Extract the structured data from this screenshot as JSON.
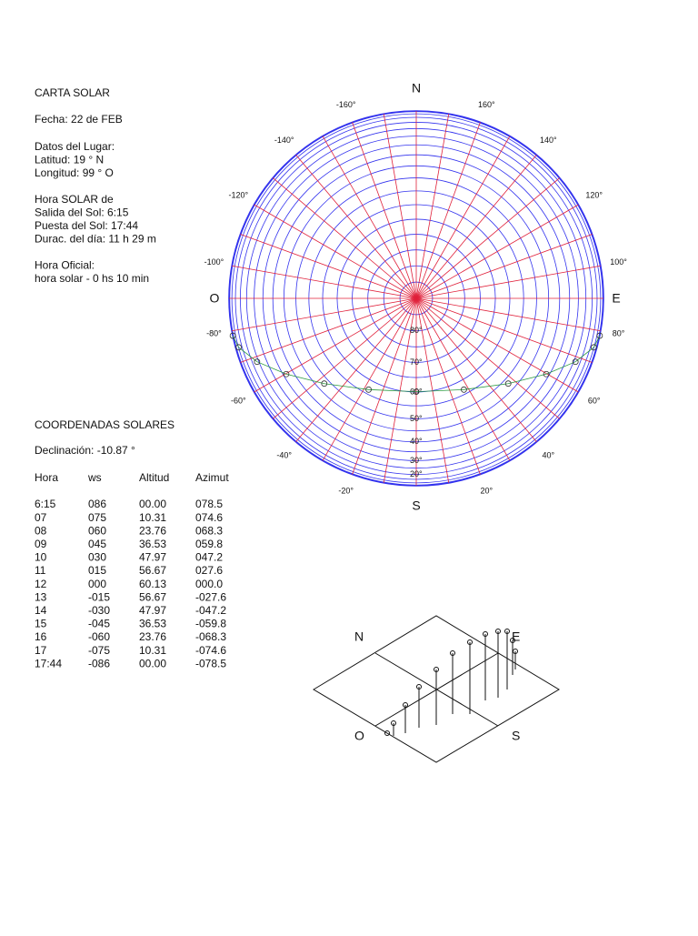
{
  "header": {
    "title": "CARTA SOLAR",
    "fecha": "Fecha:  22 de FEB"
  },
  "lugar": [
    "Datos del Lugar:",
    "Latitud:   19 ° N",
    "Longitud: 99 ° O"
  ],
  "hora_solar": [
    "Hora SOLAR de",
    "Salida del Sol:  6:15",
    "Puesta del Sol:  17:44",
    "Durac. del día:  11 h 29 m"
  ],
  "hora_oficial": [
    "Hora Oficial:",
    "hora solar - 0 hs 10 min"
  ],
  "coordenadas": {
    "title": "COORDENADAS SOLARES",
    "declinacion": "Declinación: -10.87 °",
    "table": {
      "columns": [
        "Hora",
        "ws",
        "Altitud",
        "Azimut"
      ],
      "rows": [
        [
          "6:15",
          "086",
          "00.00",
          "078.5"
        ],
        [
          "07",
          "075",
          "10.31",
          "074.6"
        ],
        [
          "08",
          "060",
          "23.76",
          "068.3"
        ],
        [
          "09",
          "045",
          "36.53",
          "059.8"
        ],
        [
          "10",
          "030",
          "47.97",
          "047.2"
        ],
        [
          "11",
          "015",
          "56.67",
          "027.6"
        ],
        [
          "12",
          "000",
          "60.13",
          "000.0"
        ],
        [
          "13",
          "-015",
          "56.67",
          "-027.6"
        ],
        [
          "14",
          "-030",
          "47.97",
          "-047.2"
        ],
        [
          "15",
          "-045",
          "36.53",
          "-059.8"
        ],
        [
          "16",
          "-060",
          "23.76",
          "-068.3"
        ],
        [
          "17",
          "-075",
          "10.31",
          "-074.6"
        ],
        [
          "17:44",
          "-086",
          "00.00",
          "-078.5"
        ]
      ]
    }
  },
  "carta": {
    "cardinals": {
      "N": "N",
      "S": "S",
      "E": "E",
      "O": "O"
    },
    "azimuth_labels": [
      {
        "value": 20,
        "label": "20°"
      },
      {
        "value": 40,
        "label": "40°"
      },
      {
        "value": 60,
        "label": "60°"
      },
      {
        "value": 80,
        "label": "80°"
      },
      {
        "value": 100,
        "label": "100°"
      },
      {
        "value": 120,
        "label": "120°"
      },
      {
        "value": 140,
        "label": "140°"
      },
      {
        "value": 160,
        "label": "160°"
      },
      {
        "value": -20,
        "label": "-20°"
      },
      {
        "value": -40,
        "label": "-40°"
      },
      {
        "value": -60,
        "label": "-60°"
      },
      {
        "value": -80,
        "label": "-80°"
      },
      {
        "value": -100,
        "label": "-100°"
      },
      {
        "value": -120,
        "label": "-120°"
      },
      {
        "value": -140,
        "label": "-140°"
      },
      {
        "value": -160,
        "label": "-160°"
      }
    ],
    "altitude_labels": [
      {
        "value": 20,
        "label": "20°"
      },
      {
        "value": 30,
        "label": "30°"
      },
      {
        "value": 40,
        "label": "40°"
      },
      {
        "value": 50,
        "label": "50°"
      },
      {
        "value": 60,
        "label": "60°"
      },
      {
        "value": 70,
        "label": "70°"
      },
      {
        "value": 80,
        "label": "80°"
      }
    ]
  },
  "diagram": {
    "N": "N",
    "E": "E",
    "O": "O",
    "S": "S"
  }
}
